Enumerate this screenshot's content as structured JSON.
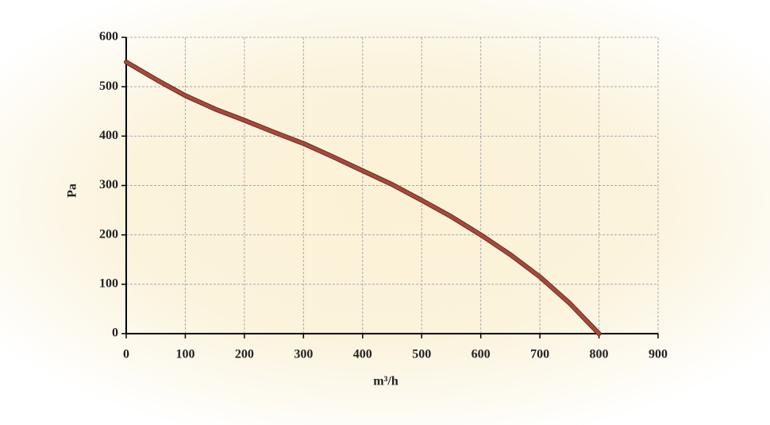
{
  "chart_data": {
    "type": "line",
    "x_label": "m³/h",
    "y_label": "Pa",
    "xlim": [
      0,
      900
    ],
    "xticks": [
      0,
      100,
      200,
      300,
      400,
      500,
      600,
      700,
      800,
      900
    ],
    "ylim": [
      0,
      600
    ],
    "yticks": [
      0,
      100,
      200,
      300,
      400,
      500,
      600
    ],
    "grid": true,
    "x": [
      0,
      50,
      100,
      150,
      200,
      250,
      300,
      350,
      400,
      450,
      500,
      550,
      600,
      650,
      700,
      750,
      800
    ],
    "series": [
      {
        "color": "#a44a3c",
        "values": [
          550,
          515,
          482,
          455,
          432,
          408,
          385,
          358,
          330,
          302,
          270,
          237,
          200,
          160,
          115,
          62,
          0
        ]
      }
    ]
  }
}
